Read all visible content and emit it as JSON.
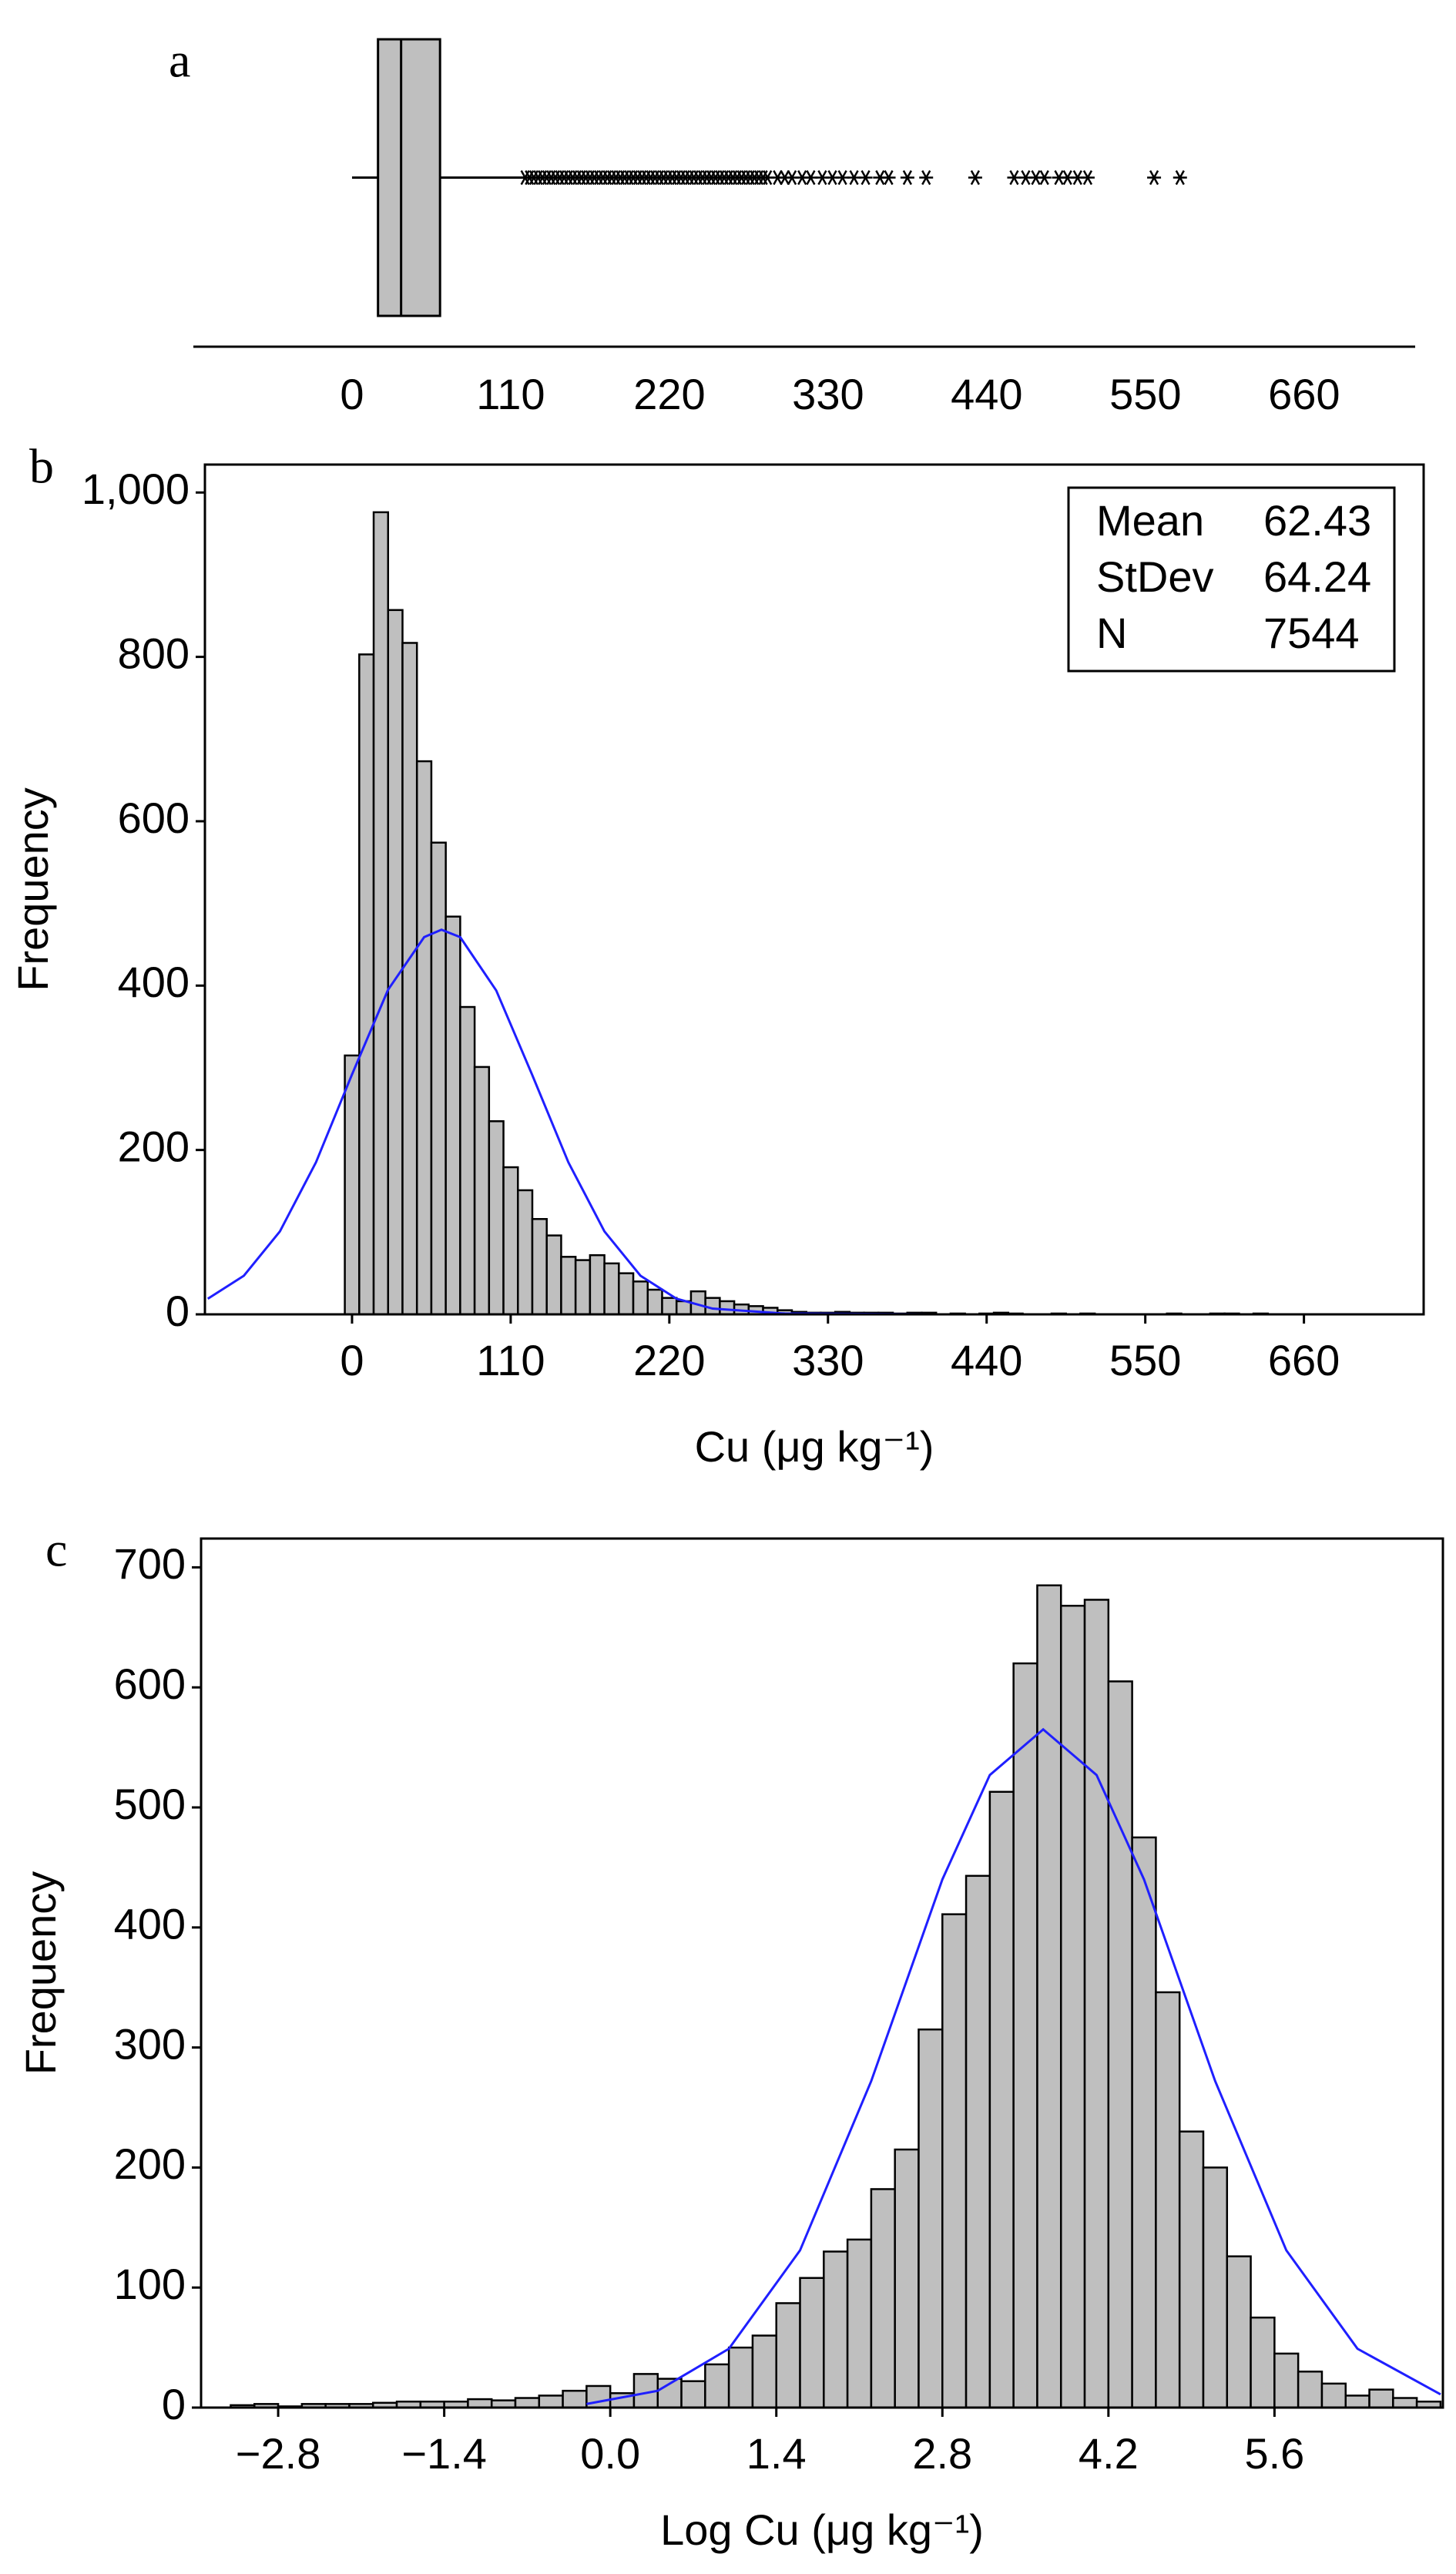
{
  "chart_data": [
    {
      "type": "box",
      "panel_label": "a",
      "color": "#bfbfbf",
      "whisker_low": 0,
      "q1": 18,
      "median": 34,
      "q3": 61,
      "whisker_high": 119,
      "outliers": [
        120,
        123,
        126,
        129,
        132,
        135,
        138,
        141,
        144,
        147,
        150,
        153,
        156,
        159,
        162,
        165,
        168,
        171,
        174,
        177,
        180,
        183,
        186,
        189,
        192,
        195,
        198,
        201,
        204,
        207,
        210,
        213,
        216,
        219,
        222,
        225,
        228,
        231,
        234,
        237,
        240,
        243,
        246,
        249,
        252,
        255,
        258,
        261,
        264,
        267,
        270,
        273,
        276,
        279,
        282,
        285,
        288,
        295,
        300,
        305,
        312,
        318,
        326,
        333,
        340,
        348,
        356,
        366,
        372,
        385,
        398,
        432,
        459,
        467,
        474,
        480,
        490,
        496,
        503,
        510,
        556,
        574
      ],
      "xlim": [
        -110,
        737
      ],
      "xticks": [
        0,
        110,
        220,
        330,
        440,
        550,
        660
      ]
    },
    {
      "type": "histogram",
      "panel_label": "b",
      "x_label": "Cu (μg kg⁻¹)",
      "y_label": "Frequency",
      "bar_color": "#bfbfbf",
      "curve_color": "#1f1fff",
      "bins": [
        -5,
        5,
        15,
        25,
        35,
        45,
        55,
        65,
        75,
        85,
        95,
        105,
        115,
        125,
        135,
        145,
        155,
        165,
        175,
        185,
        195,
        205,
        215,
        225,
        235,
        245,
        255,
        265,
        275,
        285,
        295,
        305,
        315,
        325,
        335,
        345,
        355,
        365,
        375,
        385,
        395,
        405,
        415,
        425,
        435,
        445,
        455,
        465,
        475,
        485,
        495,
        505,
        515,
        525,
        535,
        545,
        555,
        565,
        575,
        585,
        595,
        605,
        615,
        625,
        635,
        645,
        655,
        665
      ],
      "values": [
        315,
        803,
        976,
        857,
        817,
        673,
        574,
        484,
        374,
        301,
        235,
        179,
        151,
        116,
        96,
        70,
        66,
        72,
        62,
        50,
        40,
        30,
        20,
        16,
        28,
        20,
        16,
        12,
        10,
        8,
        5,
        3,
        2,
        2,
        3,
        2,
        2,
        2,
        1,
        2,
        2,
        0,
        1,
        0,
        1,
        2,
        1,
        0,
        0,
        1,
        0,
        1,
        0,
        0,
        0,
        0,
        0,
        1,
        0,
        0,
        1,
        1,
        0,
        1,
        0,
        0,
        0
      ],
      "curve": {
        "x": [
          -100,
          -75,
          -50,
          -25,
          0,
          25,
          50,
          62,
          75,
          100,
          125,
          150,
          175,
          200,
          225,
          250,
          300,
          400,
          743
        ],
        "y": [
          19,
          47,
          101,
          185,
          292,
          395,
          459,
          468,
          459,
          394,
          291,
          185,
          101,
          47,
          19,
          7,
          1,
          0,
          0
        ]
      },
      "stats": [
        [
          "Mean",
          62.43
        ],
        [
          "StDev",
          64.24
        ],
        [
          "N",
          7544
        ]
      ],
      "xlim": [
        -102,
        743
      ],
      "xticks": [
        0,
        110,
        220,
        330,
        440,
        550,
        660
      ],
      "ylim": [
        0,
        1034
      ],
      "yticks": [
        0,
        200,
        400,
        600,
        800,
        {
          "value": 1000,
          "label": "1,000"
        }
      ]
    },
    {
      "type": "histogram",
      "panel_label": "c",
      "x_label": "Log Cu (μg kg⁻¹)",
      "y_label": "Frequency",
      "bar_color": "#bfbfbf",
      "curve_color": "#1f1fff",
      "bins": [
        -3.4,
        -3.2,
        -3,
        -2.8,
        -2.6,
        -2.4,
        -2.2,
        -2,
        -1.8,
        -1.6,
        -1.4,
        -1.2,
        -1,
        -0.8,
        -0.6,
        -0.4,
        -0.2,
        0,
        0.2,
        0.4,
        0.6,
        0.8,
        1,
        1.2,
        1.4,
        1.6,
        1.8,
        2,
        2.2,
        2.4,
        2.6,
        2.8,
        3,
        3.2,
        3.4,
        3.6,
        3.8,
        4,
        4.2,
        4.4,
        4.6,
        4.8,
        5,
        5.2,
        5.4,
        5.6,
        5.8,
        6,
        6.2,
        6.4,
        6.6,
        6.8,
        7
      ],
      "values": [
        0,
        2,
        3,
        1,
        3,
        3,
        3,
        4,
        5,
        5,
        5,
        7,
        6,
        8,
        10,
        14,
        18,
        12,
        28,
        24,
        22,
        36,
        50,
        60,
        87,
        108,
        130,
        140,
        182,
        215,
        315,
        411,
        443,
        513,
        620,
        685,
        668,
        673,
        605,
        475,
        346,
        230,
        200,
        126,
        75,
        45,
        30,
        20,
        10,
        15,
        8,
        5
      ],
      "curve": {
        "x": [
          -0.2,
          0.4,
          1,
          1.6,
          2.2,
          2.8,
          3.2,
          3.65,
          4.1,
          4.5,
          5.1,
          5.7,
          6.3,
          7
        ],
        "y": [
          3,
          14,
          49,
          131,
          272,
          440,
          527,
          565,
          527,
          440,
          272,
          131,
          49,
          11
        ]
      },
      "xlim": [
        -3.45,
        7.02
      ],
      "xticks": [
        {
          "value": -2.8,
          "label": "−2.8"
        },
        {
          "value": -1.4,
          "label": "−1.4"
        },
        {
          "value": 0,
          "label": "0.0"
        },
        1.4,
        2.8,
        4.2,
        5.6
      ],
      "ylim": [
        0,
        724
      ],
      "yticks": [
        0,
        100,
        200,
        300,
        400,
        500,
        600,
        700
      ]
    }
  ]
}
